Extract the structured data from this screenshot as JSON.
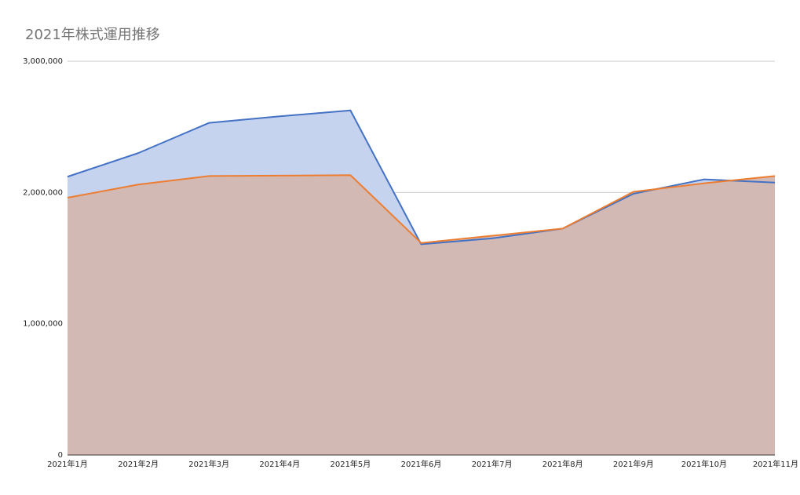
{
  "chart_data": {
    "type": "area",
    "title": "2021年株式運用推移",
    "xlabel": "",
    "ylabel": "",
    "categories": [
      "2021年1月",
      "2021年2月",
      "2021年3月",
      "2021年4月",
      "2021年5月",
      "2021年6月",
      "2021年7月",
      "2021年8月",
      "2021年9月",
      "2021年10月",
      "2021年11月"
    ],
    "series": [
      {
        "color": "#4472c4",
        "fill": "#c6d3ee",
        "values": [
          2120000,
          2300000,
          2530000,
          2580000,
          2625000,
          1605000,
          1650000,
          1725000,
          1990000,
          2100000,
          2075000
        ]
      },
      {
        "color": "#ed7d31",
        "fill": "#d3b9b3",
        "values": [
          1960000,
          2060000,
          2125000,
          2128000,
          2132000,
          1615000,
          1670000,
          1725000,
          2005000,
          2070000,
          2125000
        ]
      }
    ],
    "yticks": [
      0,
      1000000,
      2000000,
      3000000
    ],
    "ytick_labels": [
      "0",
      "1,000,000",
      "2,000,000",
      "3,000,000"
    ],
    "ylim": [
      0,
      3000000
    ],
    "grid": true,
    "legend": "none"
  }
}
